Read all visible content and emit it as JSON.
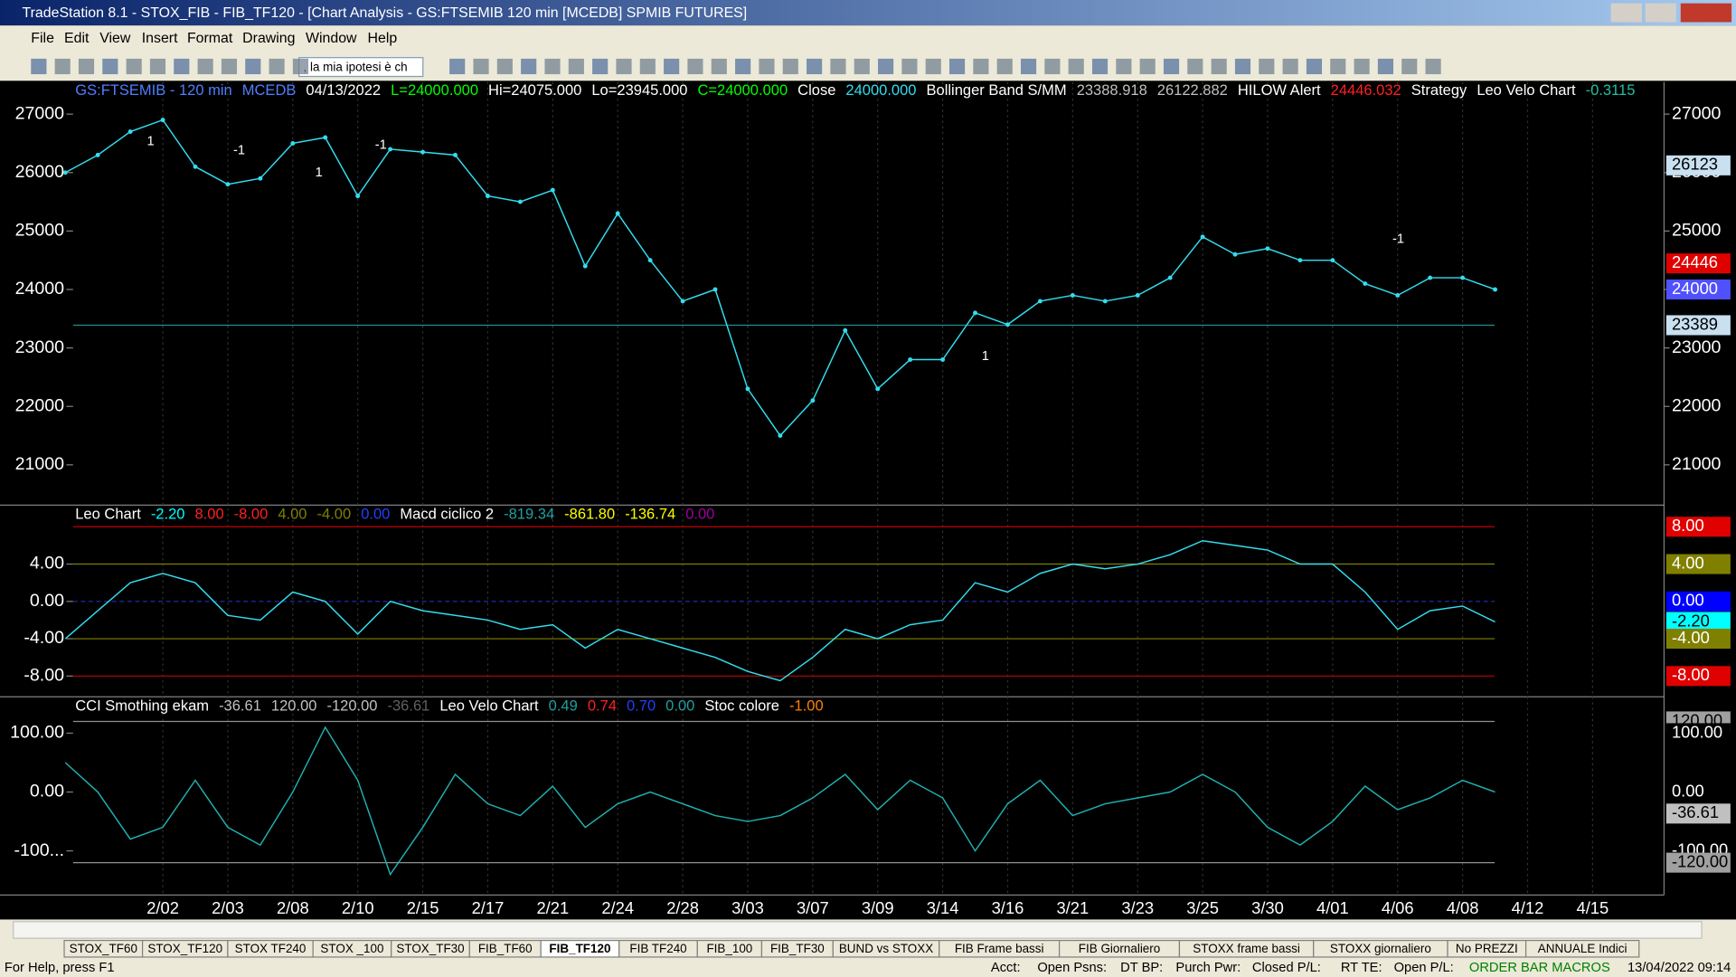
{
  "window": {
    "title": "TradeStation 8.1 - STOX_FIB - FIB_TF120 - [Chart Analysis - GS:FTSEMIB  120 min  [MCEDB] SPMIB FUTURES]",
    "menu": [
      "File",
      "Edit",
      "View",
      "Insert",
      "Format",
      "Drawing",
      "Window",
      "Help"
    ],
    "toolbar_combo": ", la mia ipotesi è ch"
  },
  "chart_data": [
    {
      "type": "line",
      "header": [
        {
          "text": "GS:FTSEMIB - 120 min",
          "color": "#4f7fff"
        },
        {
          "text": "MCEDB",
          "color": "#4f7fff"
        },
        {
          "text": "04/13/2022",
          "color": "#ffffff"
        },
        {
          "text": "L=24000.000",
          "color": "#00ff00"
        },
        {
          "text": "Hi=24075.000",
          "color": "#ffffff"
        },
        {
          "text": "Lo=23945.000",
          "color": "#ffffff"
        },
        {
          "text": "C=24000.000",
          "color": "#00ff00"
        },
        {
          "text": "Close",
          "color": "#ffffff"
        },
        {
          "text": "24000.000",
          "color": "#33ddee"
        },
        {
          "text": "Bollinger Band S/MM",
          "color": "#ffffff"
        },
        {
          "text": "23388.918",
          "color": "#c0c0c0"
        },
        {
          "text": "26122.882",
          "color": "#c0c0c0"
        },
        {
          "text": "HILOW Alert",
          "color": "#ffffff"
        },
        {
          "text": "24446.032",
          "color": "#ff2020"
        },
        {
          "text": "Strategy",
          "color": "#ffffff"
        },
        {
          "text": "Leo Velo Chart",
          "color": "#ffffff"
        },
        {
          "text": "-0.3115",
          "color": "#20c0a0"
        }
      ],
      "categories": [
        null,
        null,
        null,
        "2/02",
        null,
        "2/03",
        null,
        "2/08",
        null,
        "2/10",
        null,
        "2/15",
        null,
        "2/17",
        null,
        "2/21",
        null,
        "2/24",
        null,
        "2/28",
        null,
        "3/03",
        null,
        "3/07",
        null,
        "3/09",
        null,
        "3/14",
        null,
        "3/16",
        null,
        "3/21",
        null,
        "3/23",
        null,
        "3/25",
        null,
        "3/30",
        null,
        "4/01",
        null,
        "4/06",
        null,
        "4/08",
        null,
        "4/12",
        null,
        "4/15"
      ],
      "series": [
        {
          "color": "#33ddee",
          "values": [
            26000,
            26300,
            26700,
            26900,
            26100,
            25800,
            25900,
            26500,
            26600,
            25600,
            26400,
            26350,
            26300,
            25600,
            25500,
            25700,
            24400,
            25300,
            24500,
            23800,
            24000,
            22300,
            21500,
            22100,
            23300,
            22300,
            22800,
            22800,
            23600,
            23400,
            23800,
            23900,
            23800,
            23900,
            24200,
            24900,
            24600,
            24700,
            24500,
            24500,
            24100,
            23900,
            24200,
            24200,
            24000,
            null,
            null,
            null
          ]
        }
      ],
      "ylim": [
        20330,
        27550
      ],
      "yticks": [
        21000,
        22000,
        23000,
        24000,
        25000,
        26000,
        27000
      ],
      "price_tags": [
        {
          "value": 26123,
          "label": "26123",
          "color": "#c8e0f0",
          "text_color": "#000000"
        },
        {
          "value": 24446,
          "label": "24446",
          "color": "#e00000",
          "text_color": "#ffffff"
        },
        {
          "value": 24000,
          "label": "24000",
          "color": "#5050ff",
          "text_color": "#ffffff"
        },
        {
          "value": 23389,
          "label": "23389",
          "color": "#c8e0f0",
          "text_color": "#000000",
          "line": "#1f8f8f"
        }
      ],
      "annotations": [
        "1",
        "-1",
        "1",
        "-1",
        "1",
        "-1"
      ]
    },
    {
      "type": "line",
      "header": [
        {
          "text": "Leo Chart",
          "color": "#ffffff"
        },
        {
          "text": "-2.20",
          "color": "#00ffff"
        },
        {
          "text": "8.00",
          "color": "#ff2020"
        },
        {
          "text": "-8.00",
          "color": "#ff2020"
        },
        {
          "text": "4.00",
          "color": "#808000"
        },
        {
          "text": "-4.00",
          "color": "#808000"
        },
        {
          "text": "0.00",
          "color": "#2040ff"
        },
        {
          "text": "Macd ciclico 2",
          "color": "#ffffff"
        },
        {
          "text": "-819.34",
          "color": "#20a0a0"
        },
        {
          "text": "-861.80",
          "color": "#ffff00"
        },
        {
          "text": "-136.74",
          "color": "#ffff00"
        },
        {
          "text": "0.00",
          "color": "#a000a0"
        }
      ],
      "series": [
        {
          "color": "#33ddee",
          "values": [
            -4,
            -1,
            2,
            3,
            2,
            -1.5,
            -2,
            1,
            0,
            -3.5,
            0,
            -1,
            -1.5,
            -2,
            -3,
            -2.5,
            -5,
            -3,
            -4,
            -5,
            -6,
            -7.5,
            -8.5,
            -6,
            -3,
            -4,
            -2.5,
            -2,
            2,
            1,
            3,
            4,
            3.5,
            4,
            5,
            6.5,
            6,
            5.5,
            4,
            4,
            1,
            -3,
            -1,
            -0.5,
            -2.2,
            null,
            null,
            null
          ]
        }
      ],
      "ylim": [
        -10.1,
        10.2
      ],
      "yticks": [
        {
          "value": -8,
          "label": "-8.00"
        },
        {
          "value": -4,
          "label": "-4.00"
        },
        {
          "value": 0,
          "label": "0.00"
        },
        {
          "value": 4,
          "label": "4.00"
        }
      ],
      "price_tags": [
        {
          "value": 8,
          "label": "8.00",
          "color": "#e00000",
          "text_color": "#ffffff",
          "line": "#c00000"
        },
        {
          "value": 4,
          "label": "4.00",
          "color": "#808000",
          "text_color": "#ffffff",
          "line": "#808000"
        },
        {
          "value": 0,
          "label": "0.00",
          "color": "#0000ff",
          "text_color": "#ffffff",
          "line": "#2030c0"
        },
        {
          "value": -2.2,
          "label": "-2.20",
          "color": "#00ffff",
          "text_color": "#000000"
        },
        {
          "value": -4,
          "label": "-4.00",
          "color": "#808000",
          "text_color": "#ffffff",
          "line": "#808000"
        },
        {
          "value": -8,
          "label": "-8.00",
          "color": "#e00000",
          "text_color": "#ffffff",
          "line": "#c00000"
        }
      ]
    },
    {
      "type": "line",
      "header": [
        {
          "text": "CCI Smothing ekam",
          "color": "#ffffff"
        },
        {
          "text": "-36.61",
          "color": "#c0c0c0"
        },
        {
          "text": "120.00",
          "color": "#c0c0c0"
        },
        {
          "text": "-120.00",
          "color": "#c0c0c0"
        },
        {
          "text": "-36.61",
          "color": "#606060"
        },
        {
          "text": "Leo Velo Chart",
          "color": "#ffffff"
        },
        {
          "text": "0.49",
          "color": "#20a0a0"
        },
        {
          "text": "0.74",
          "color": "#ff2020"
        },
        {
          "text": "0.70",
          "color": "#2040ff"
        },
        {
          "text": "0.00",
          "color": "#20a0a0"
        },
        {
          "text": "Stoc colore",
          "color": "#ffffff"
        },
        {
          "text": "-1.00",
          "color": "#ff8000"
        }
      ],
      "series": [
        {
          "color": "#20b0b0",
          "values": [
            50,
            0,
            -80,
            -60,
            20,
            -60,
            -90,
            0,
            110,
            20,
            -140,
            -60,
            30,
            -20,
            -40,
            10,
            -60,
            -20,
            0,
            -20,
            -40,
            -50,
            -40,
            -10,
            30,
            -30,
            20,
            -10,
            -100,
            -20,
            20,
            -40,
            -20,
            -10,
            0,
            30,
            0,
            -60,
            -90,
            -50,
            10,
            -30,
            -10,
            20,
            0,
            null,
            null,
            null
          ]
        }
      ],
      "ylim": [
        -175,
        160
      ],
      "yticks": [
        {
          "value": -100,
          "label": "-100..."
        },
        {
          "value": 0,
          "label": "0.00"
        },
        {
          "value": 100,
          "label": "100.00"
        }
      ],
      "price_tags": [
        {
          "value": 120,
          "label": "120.00",
          "color": "#a0a0a0",
          "text_color": "#000000",
          "line": "#909090"
        },
        {
          "value": 100,
          "label": "100.00",
          "color": "#000000",
          "text_color": "#ffffff"
        },
        {
          "value": 0,
          "label": "0.00",
          "color": "#000000",
          "text_color": "#ffffff"
        },
        {
          "value": -36.61,
          "label": "-36.61",
          "color": "#c0c0c0",
          "text_color": "#000000"
        },
        {
          "value": -100,
          "label": "-100.00",
          "color": "#000000",
          "text_color": "#ffffff"
        },
        {
          "value": -120,
          "label": "-120.00",
          "color": "#a0a0a0",
          "text_color": "#000000",
          "line": "#909090"
        }
      ]
    }
  ],
  "tabs": [
    "STOX_TF60",
    "STOX_TF120",
    "STOX TF240",
    "STOX _100",
    "STOX_TF30",
    "FIB_TF60",
    "FIB_TF120",
    "FIB TF240",
    "FIB_100",
    "FIB_TF30",
    "BUND vs STOXX",
    "FIB Frame bassi",
    "FIB Giornaliero",
    "STOXX frame bassi",
    "STOXX giornaliero",
    "No PREZZI",
    "ANNUALE Indici"
  ],
  "active_tab": "FIB_TF120",
  "status": [
    "For Help, press F1",
    "Acct:",
    "Open Psns:",
    "DT BP:",
    "Purch Pwr:",
    "Closed P/L:",
    "RT TE:",
    "Open P/L:",
    "ORDER BAR MACROS",
    "13/04/2022 09:14"
  ]
}
